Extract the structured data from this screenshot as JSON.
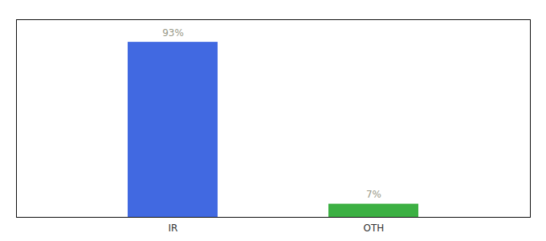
{
  "chart_data": {
    "type": "bar",
    "categories": [
      "IR",
      "OTH"
    ],
    "values": [
      93,
      7
    ],
    "value_labels": [
      "93%",
      "7%"
    ],
    "colors": [
      "#4169e1",
      "#3cb043"
    ],
    "ylim": [
      0,
      105
    ],
    "data_labels": true,
    "tick_labels": "x"
  }
}
